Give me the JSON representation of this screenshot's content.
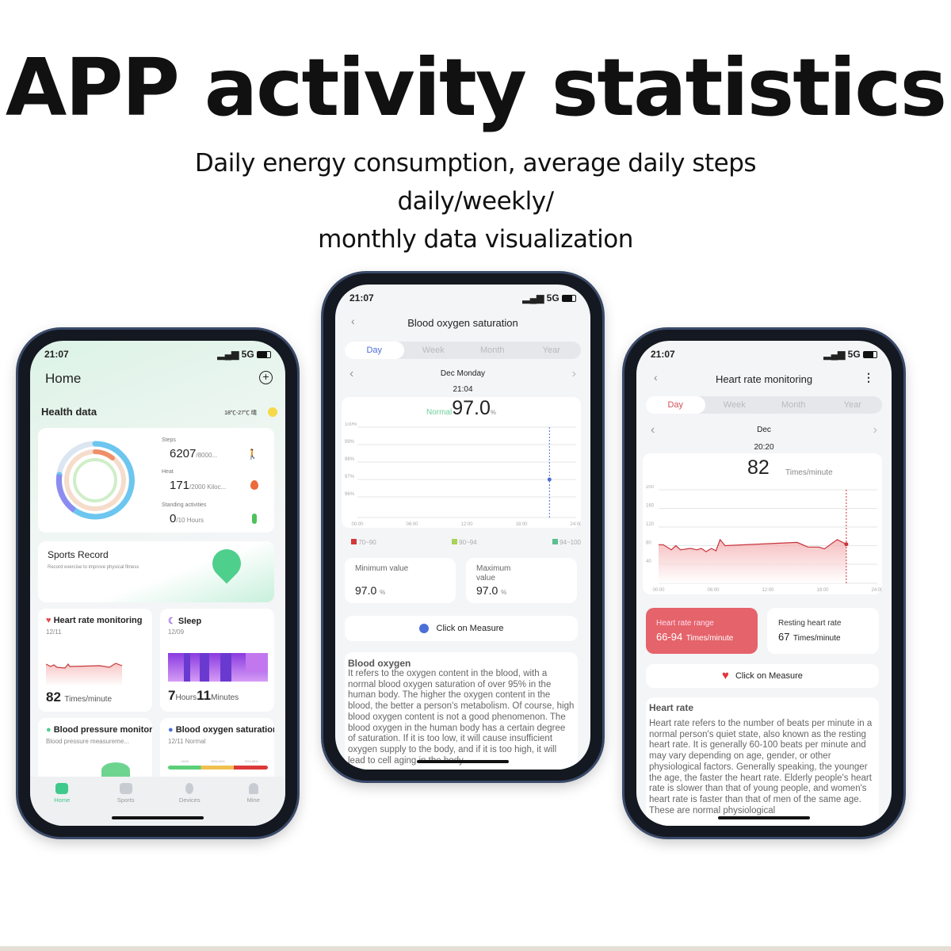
{
  "hero": {
    "title": "APP activity statistics",
    "subtitle_line1": "Daily energy consumption, average daily steps daily/weekly/",
    "subtitle_line2": "monthly data visualization"
  },
  "left": {
    "time": "21:07",
    "signal": "5G",
    "title": "Home",
    "add_icon": "plus-circle-icon",
    "health_data": "Health data",
    "weather": "18℃-27℃ 晴",
    "steps_label": "Steps",
    "steps_value": "6207",
    "steps_goal": "/8000...",
    "heat_label": "Heat",
    "heat_value": "171",
    "heat_goal": "/2000 Kiloc...",
    "stand_label": "Standing activities",
    "stand_value": "0",
    "stand_goal": "/10 Hours",
    "sports_title": "Sports Record",
    "sports_sub": "Record exercise to improve physical fitness",
    "hr_title": "Heart rate monitoring",
    "hr_date": "12/11",
    "hr_value": "82",
    "hr_unit": "Times/minute",
    "sleep_title": "Sleep",
    "sleep_date": "12/09",
    "sleep_h": "7",
    "sleep_h_unit": "Hours",
    "sleep_m": "11",
    "sleep_m_unit": "Minutes",
    "bp_title": "Blood pressure monitoring",
    "bp_sub": "Blood pressure measureme...",
    "bo_title": "Blood oxygen saturation",
    "bo_sub": "12/11 Normal",
    "bo_scale": [
      ">94%",
      "90%-94%",
      "70%-89%"
    ],
    "tabs": [
      "Home",
      "Sports",
      "Devices",
      "Mine"
    ],
    "active_color": "#3fc98a"
  },
  "middle": {
    "time": "21:07",
    "signal": "5G",
    "title": "Blood oxygen saturation",
    "periods": [
      "Day",
      "Week",
      "Month",
      "Year"
    ],
    "date": "Dec Monday",
    "reading_time": "21:04",
    "status": "Normal",
    "value": "97.0",
    "unit": "%",
    "y_ticks": [
      "100%",
      "99%",
      "98%",
      "97%",
      "96%"
    ],
    "x_ticks": [
      "00:00",
      "06:00",
      "12:00",
      "18:00",
      "24:00"
    ],
    "point": {
      "hour": 21.07,
      "value": 97
    },
    "legend": [
      {
        "label": "70~90",
        "color": "#d23a3a"
      },
      {
        "label": "90~94",
        "color": "#a8d25a"
      },
      {
        "label": "94~100",
        "color": "#5bbf8e"
      }
    ],
    "min_label": "Minimum value",
    "min_value": "97.0",
    "max_label": "Maximum value",
    "max_value": "97.0",
    "measure": "Click on Measure",
    "info_title": "Blood oxygen",
    "info": "It refers to the oxygen content in the blood, with a normal blood oxygen saturation of over 95% in the human body. The higher the oxygen content in the blood, the better a person's metabolism. Of course, high blood oxygen content is not a good phenomenon. The blood oxygen in the human body has a certain degree of saturation. If it is too low, it will cause insufficient oxygen supply to the body, and if it is too high, it will lead to cell aging in the body.",
    "accent": "#4a6fd8"
  },
  "right": {
    "time": "21:07",
    "signal": "5G",
    "title": "Heart rate monitoring",
    "periods": [
      "Day",
      "Week",
      "Month",
      "Year"
    ],
    "date": "Dec",
    "reading_time": "20:20",
    "value": "82",
    "unit": "Times/minute",
    "y_ticks": [
      "200",
      "160",
      "120",
      "80",
      "40"
    ],
    "x_ticks": [
      "00:00",
      "06:00",
      "12:00",
      "18:00",
      "24:00"
    ],
    "series": [
      [
        0,
        82
      ],
      [
        0.5,
        82
      ],
      [
        1.4,
        71
      ],
      [
        1.9,
        80
      ],
      [
        2.4,
        71
      ],
      [
        3.5,
        74
      ],
      [
        4.2,
        71
      ],
      [
        4.7,
        74
      ],
      [
        5.2,
        67
      ],
      [
        5.8,
        74
      ],
      [
        6.3,
        69
      ],
      [
        6.75,
        93
      ],
      [
        7.3,
        80
      ],
      [
        15.2,
        87
      ],
      [
        16.4,
        77
      ],
      [
        17.6,
        77
      ],
      [
        18.2,
        73
      ],
      [
        18.9,
        83
      ],
      [
        19.6,
        93
      ],
      [
        20.1,
        88
      ],
      [
        20.6,
        83
      ]
    ],
    "range_label": "Heart rate range",
    "range_value": "66-94",
    "range_unit": "Times/minute",
    "resting_label": "Resting heart rate",
    "resting_value": "67",
    "resting_unit": "Times/minute",
    "measure": "Click on Measure",
    "info_title": "Heart rate",
    "info": "Heart rate refers to the number of beats per minute in a normal person's quiet state, also known as the resting heart rate. It is generally 60-100 beats per minute and may vary depending on age, gender, or other physiological factors. Generally speaking, the younger the age, the faster the heart rate. Elderly people's heart rate is slower than that of young people, and women's heart rate is faster than that of men of the same age. These are normal physiological",
    "accent": "#e5636a"
  }
}
